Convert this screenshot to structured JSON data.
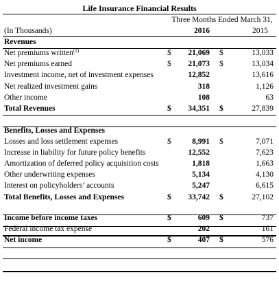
{
  "title": "Life Insurance Financial Results",
  "period": "Three Months Ended March 31,",
  "units": "(In Thousands)",
  "years": [
    "2016",
    "2015"
  ],
  "revenues": {
    "heading": "Revenues",
    "rows": [
      {
        "label": "Net premiums written",
        "footnote": "(1)",
        "cur1": "$",
        "v1": "21,069",
        "cur2": "$",
        "v2": "13,033"
      },
      {
        "label": "Net premiums earned",
        "cur1": "$",
        "v1": "21,073",
        "cur2": "$",
        "v2": "13,034"
      },
      {
        "label": "Investment income, net of investment expenses",
        "cur1": "",
        "v1": "12,852",
        "cur2": "",
        "v2": "13,616"
      },
      {
        "label": "Net realized investment gains",
        "cur1": "",
        "v1": "318",
        "cur2": "",
        "v2": "1,126"
      },
      {
        "label": "Other income",
        "cur1": "",
        "v1": "108",
        "cur2": "",
        "v2": "63"
      }
    ],
    "total": {
      "label": "Total Revenues",
      "cur1": "$",
      "v1": "34,351",
      "cur2": "$",
      "v2": "27,839"
    }
  },
  "benefits": {
    "heading": "Benefits, Losses and Expenses",
    "rows": [
      {
        "label": "Losses and loss settlement expenses",
        "cur1": "$",
        "v1": "8,991",
        "cur2": "$",
        "v2": "7,071"
      },
      {
        "label": "Increase in liability for future policy benefits",
        "cur1": "",
        "v1": "12,552",
        "cur2": "",
        "v2": "7,623"
      },
      {
        "label": "Amortization of deferred policy acquisition costs",
        "cur1": "",
        "v1": "1,818",
        "cur2": "",
        "v2": "1,663"
      },
      {
        "label": "Other underwriting expenses",
        "cur1": "",
        "v1": "5,134",
        "cur2": "",
        "v2": "4,130"
      },
      {
        "label": "Interest on policyholders’ accounts",
        "cur1": "",
        "v1": "5,247",
        "cur2": "",
        "v2": "6,615"
      }
    ],
    "total": {
      "label": "Total Benefits, Losses and Expenses",
      "cur1": "$",
      "v1": "33,742",
      "cur2": "$",
      "v2": "27,102"
    }
  },
  "income": {
    "rows": [
      {
        "label": "Income before income taxes",
        "cur1": "$",
        "v1": "609",
        "cur2": "$",
        "v2": "737"
      },
      {
        "label": "Federal income tax expense",
        "cur1": "",
        "v1": "202",
        "cur2": "",
        "v2": "161"
      }
    ],
    "total": {
      "label": "Net income",
      "cur1": "$",
      "v1": "407",
      "cur2": "$",
      "v2": "576"
    }
  }
}
